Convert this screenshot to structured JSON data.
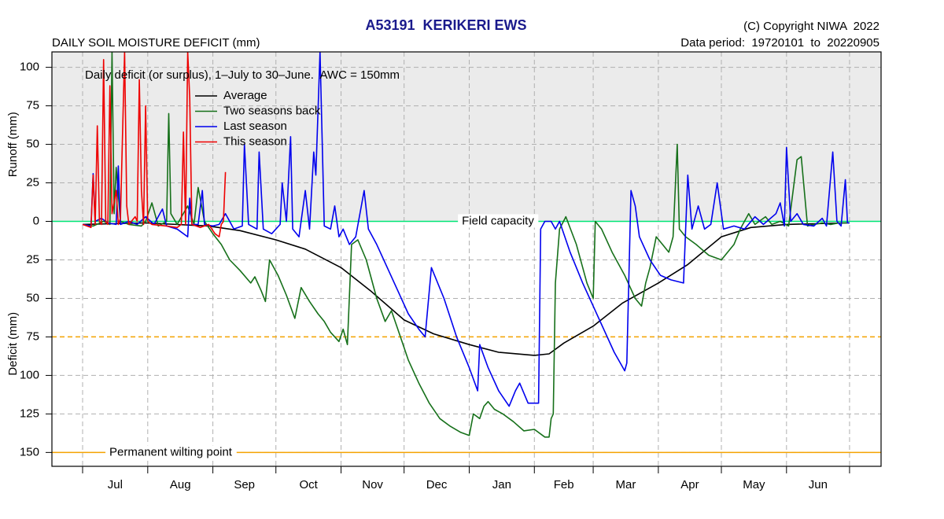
{
  "chart_data": {
    "type": "line",
    "title": "A53191  KERIKERI EWS",
    "copyright": "(C) Copyright NIWA  2022",
    "subtitle": "DAILY SOIL MOISTURE DEFICIT (mm)",
    "data_period": "Data period:  19720101  to  20220905",
    "annotation": "Daily deficit (or surplus), 1–July to 30–June.  AWC = 150mm",
    "y_label_top": "Runoff (mm)",
    "y_label_bottom": "Deficit (mm)",
    "xlim": [
      -14.6,
      380
    ],
    "xticks": [
      0,
      31,
      62,
      92,
      123,
      153,
      184,
      215,
      243,
      274,
      304,
      335,
      365
    ],
    "categories": [
      "Jul",
      "Aug",
      "Sep",
      "Oct",
      "Nov",
      "Dec",
      "Jan",
      "Feb",
      "Mar",
      "Apr",
      "May",
      "Jun"
    ],
    "ylim": [
      -159,
      110
    ],
    "yticks": [
      100,
      75,
      50,
      25,
      0,
      {
        "value": -25,
        "label": "25"
      },
      {
        "value": -50,
        "label": "50"
      },
      {
        "value": -75,
        "label": "75"
      },
      {
        "value": -100,
        "label": "100"
      },
      {
        "value": -125,
        "label": "125"
      },
      {
        "value": -150,
        "label": "150"
      }
    ],
    "grid": true,
    "surplus_shade": "#ebebeb",
    "reference_lines": [
      {
        "value": 0,
        "label": "Field capacity",
        "color": "#00e676",
        "dashed": false
      },
      {
        "value": -75,
        "color": "#f5a300",
        "dashed": true
      },
      {
        "value": -150,
        "label": "Permanent wilting point",
        "color": "#f5a300",
        "dashed": false
      }
    ],
    "legend": "upper-left",
    "series": [
      {
        "name": "Average",
        "color": "#000000",
        "x": [
          0,
          30,
          60,
          75,
          92,
          106,
          123,
          137,
          153,
          167,
          184,
          198,
          215,
          222,
          229,
          243,
          257,
          274,
          288,
          304,
          318,
          335,
          364
        ],
        "values": [
          -2,
          -1,
          -3,
          -6,
          -12,
          -18,
          -30,
          -45,
          -64,
          -73,
          -80,
          -85,
          -87,
          -86,
          -79,
          -68,
          -53,
          -40,
          -28,
          -10,
          -4,
          -2,
          -1
        ]
      },
      {
        "name": "Two seasons back",
        "color": "#16701a",
        "x": [
          0,
          5,
          10,
          13,
          14,
          15,
          16,
          18,
          22,
          28,
          30,
          33,
          36,
          40,
          41,
          42,
          45,
          50,
          53,
          55,
          58,
          62,
          66,
          70,
          75,
          80,
          82,
          85,
          87,
          89,
          93,
          97,
          101,
          104,
          108,
          112,
          115,
          118,
          122,
          124,
          126,
          128,
          131,
          135,
          140,
          144,
          147,
          150,
          155,
          160,
          165,
          170,
          175,
          180,
          184,
          186,
          189,
          191,
          193,
          196,
          200,
          205,
          210,
          215,
          220,
          222,
          223,
          224,
          225,
          227,
          230,
          235,
          240,
          243,
          244,
          247,
          252,
          258,
          263,
          266,
          268,
          270,
          273,
          276,
          279,
          281,
          283,
          284,
          287,
          292,
          298,
          304,
          310,
          313,
          317,
          320,
          325,
          328,
          332,
          336,
          340,
          342,
          345,
          348,
          352,
          356,
          360,
          365
        ],
        "values": [
          -2,
          -3,
          0,
          -2,
          110,
          5,
          35,
          0,
          -2,
          -3,
          0,
          12,
          -3,
          0,
          70,
          5,
          -2,
          10,
          -2,
          22,
          0,
          -8,
          -15,
          -25,
          -32,
          -40,
          -36,
          -45,
          -52,
          -25,
          -35,
          -48,
          -63,
          -43,
          -52,
          -60,
          -65,
          -72,
          -78,
          -70,
          -80,
          -15,
          -12,
          -25,
          -50,
          -65,
          -58,
          -70,
          -90,
          -105,
          -118,
          -128,
          -133,
          -137,
          -139,
          -125,
          -128,
          -120,
          -117,
          -122,
          -125,
          -130,
          -136,
          -135,
          -140,
          -140,
          -128,
          -125,
          -40,
          -5,
          3,
          -15,
          -40,
          -50,
          0,
          -5,
          -20,
          -35,
          -50,
          -55,
          -40,
          -30,
          -10,
          -15,
          -20,
          -10,
          50,
          -5,
          -10,
          -15,
          -22,
          -25,
          -15,
          -5,
          5,
          -2,
          3,
          -2,
          0,
          -3,
          40,
          42,
          -3,
          -2,
          -1,
          -2,
          -1,
          -1
        ]
      },
      {
        "name": "Last season",
        "color": "#0000ee",
        "x": [
          0,
          4,
          5,
          6,
          9,
          12,
          16,
          17,
          18,
          22,
          26,
          30,
          34,
          38,
          40,
          45,
          50,
          51,
          52,
          55,
          57,
          58,
          62,
          65,
          68,
          70,
          72,
          76,
          77,
          79,
          83,
          84,
          86,
          90,
          94,
          95,
          97,
          99,
          100,
          103,
          106,
          108,
          110,
          111,
          113,
          115,
          118,
          120,
          122,
          124,
          127,
          130,
          134,
          136,
          140,
          145,
          150,
          155,
          160,
          163,
          166,
          172,
          178,
          184,
          188,
          189,
          193,
          198,
          203,
          206,
          208,
          212,
          217,
          218,
          220,
          223,
          225,
          227,
          232,
          238,
          243,
          248,
          253,
          258,
          259,
          261,
          263,
          265,
          270,
          275,
          280,
          286,
          288,
          290,
          293,
          296,
          299,
          302,
          305,
          310,
          315,
          320,
          324,
          330,
          332,
          334,
          335,
          337,
          340,
          343,
          348,
          352,
          354,
          357,
          359,
          361,
          363,
          364,
          365
        ],
        "values": [
          -2,
          -3,
          31,
          0,
          2,
          -1,
          -2,
          36,
          -2,
          0,
          -2,
          3,
          -2,
          8,
          -3,
          -5,
          -10,
          15,
          -2,
          -2,
          20,
          -2,
          -3,
          -2,
          5,
          0,
          -5,
          -3,
          50,
          -2,
          -5,
          45,
          -5,
          -8,
          -2,
          25,
          0,
          55,
          -5,
          -10,
          20,
          -5,
          45,
          30,
          110,
          -3,
          -5,
          10,
          -10,
          -5,
          -15,
          -10,
          20,
          -5,
          -15,
          -30,
          -45,
          -60,
          -70,
          -75,
          -30,
          -50,
          -75,
          -95,
          -110,
          -80,
          -95,
          -110,
          -120,
          -110,
          -105,
          -118,
          -118,
          -5,
          0,
          0,
          -5,
          0,
          -20,
          -40,
          -55,
          -70,
          -85,
          -97,
          -92,
          20,
          10,
          -10,
          -25,
          -35,
          -38,
          -40,
          30,
          -5,
          10,
          -5,
          -2,
          25,
          -5,
          -3,
          -5,
          3,
          -2,
          5,
          12,
          -3,
          48,
          0,
          5,
          -2,
          -3,
          2,
          -3,
          45,
          0,
          -3,
          27,
          -1,
          -1
        ]
      },
      {
        "name": "This season",
        "color": "#ee0000",
        "x": [
          0,
          4,
          5,
          6,
          7,
          8,
          9,
          10,
          11,
          12,
          13,
          14,
          16,
          17,
          18,
          20,
          21,
          22,
          25,
          26,
          27,
          28,
          29,
          30,
          31,
          33,
          40,
          45,
          47,
          48,
          49,
          50,
          51,
          52,
          56,
          60,
          63,
          65,
          66,
          67,
          68
        ],
        "values": [
          -2,
          -4,
          30,
          -2,
          62,
          0,
          -2,
          105,
          0,
          -2,
          88,
          5,
          20,
          -2,
          2,
          110,
          10,
          -2,
          3,
          0,
          92,
          20,
          -2,
          75,
          0,
          -2,
          -3,
          -4,
          -2,
          58,
          -2,
          110,
          80,
          -2,
          -4,
          -2,
          -8,
          -10,
          -2,
          0,
          32
        ]
      }
    ]
  }
}
